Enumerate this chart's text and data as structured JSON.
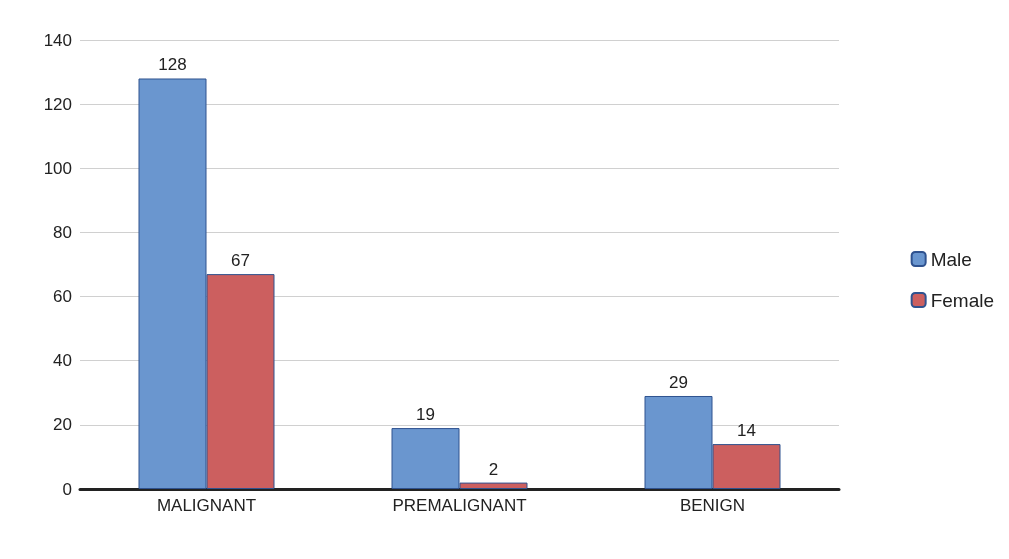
{
  "chart_data": {
    "type": "bar",
    "categories": [
      "MALIGNANT",
      "PREMALIGNANT",
      "BENIGN"
    ],
    "series": [
      {
        "name": "Male",
        "color": "#6a96cf",
        "values": [
          128,
          19,
          29
        ]
      },
      {
        "name": "Female",
        "color": "#cc5f5f",
        "values": [
          67,
          2,
          14
        ]
      }
    ],
    "ylim": [
      0,
      140
    ],
    "yticks": [
      0,
      20,
      40,
      60,
      80,
      100,
      120,
      140
    ],
    "grid": "y",
    "legend": "right",
    "data_labels": true
  }
}
